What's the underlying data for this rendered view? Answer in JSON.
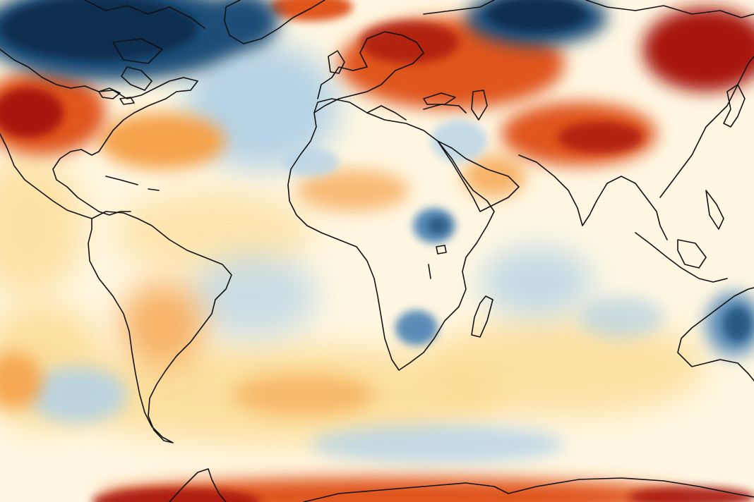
{
  "map": {
    "type": "temperature-anomaly-choropleth",
    "projection": "equirectangular",
    "colors": {
      "very_cold": "#0b2e4f",
      "cold": "#1f4e78",
      "cool": "#5b8db8",
      "slightly_cool": "#b6d3e6",
      "near_normal": "#fff7e2",
      "slightly_warm": "#fbd98d",
      "warm": "#f5a24a",
      "hot": "#e0541d",
      "very_hot": "#a8160f",
      "coastline": "#111111"
    },
    "regions": [
      {
        "name": "canada-arctic",
        "anomaly": "very_cold"
      },
      {
        "name": "greenland-east",
        "anomaly": "cold"
      },
      {
        "name": "eastern-siberia-arctic",
        "anomaly": "very_cold"
      },
      {
        "name": "western-north-america",
        "anomaly": "very_hot"
      },
      {
        "name": "eastern-europe-russia",
        "anomaly": "hot"
      },
      {
        "name": "northeast-asia",
        "anomaly": "very_hot"
      },
      {
        "name": "central-asia",
        "anomaly": "hot"
      },
      {
        "name": "north-atlantic",
        "anomaly": "slightly_cool"
      },
      {
        "name": "sahara",
        "anomaly": "slightly_warm"
      },
      {
        "name": "east-africa",
        "anomaly": "cool"
      },
      {
        "name": "southern-africa",
        "anomaly": "cool"
      },
      {
        "name": "australia-east",
        "anomaly": "cool"
      },
      {
        "name": "south-america-central",
        "anomaly": "warm"
      },
      {
        "name": "antarctica-coast",
        "anomaly": "hot"
      }
    ]
  }
}
